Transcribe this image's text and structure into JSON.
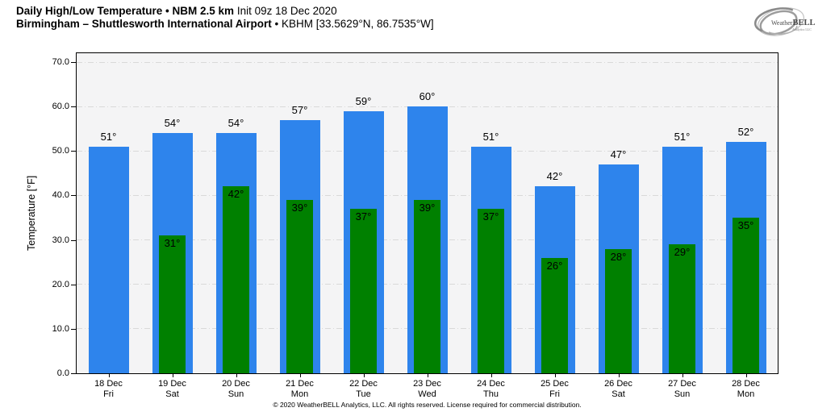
{
  "header": {
    "title_bold": "Daily High/Low Temperature • NBM 2.5 km",
    "title_regular": "Init 09z 18 Dec 2020",
    "subtitle_bold": "Birmingham – Shuttlesworth International Airport",
    "subtitle_regular": "• KBHM [33.5629°N, 86.7535°W]"
  },
  "logo": {
    "weather": "Weather",
    "bell": "BELL",
    "sub": "Analytics LLC"
  },
  "chart_data": {
    "type": "bar",
    "title": "Daily High/Low Temperature • NBM 2.5 km Init 09z 18 Dec 2020",
    "subtitle": "Birmingham – Shuttlesworth International Airport • KBHM [33.5629°N, 86.7535°W]",
    "xlabel": "",
    "ylabel": "Temperature [°F]",
    "ylim": [
      0,
      72
    ],
    "yticks": [
      0,
      10,
      20,
      30,
      40,
      50,
      60,
      70
    ],
    "ytick_labels": [
      "0.0",
      "10.0",
      "20.0",
      "30.0",
      "40.0",
      "50.0",
      "60.0",
      "70.0"
    ],
    "grid": "horizontal dash-dot",
    "legend": "none",
    "plot_bg": "#f4f4f5",
    "gridline_color": "#d9d9d9",
    "categories": [
      {
        "date": "18 Dec",
        "day": "Fri"
      },
      {
        "date": "19 Dec",
        "day": "Sat"
      },
      {
        "date": "20 Dec",
        "day": "Sun"
      },
      {
        "date": "21 Dec",
        "day": "Mon"
      },
      {
        "date": "22 Dec",
        "day": "Tue"
      },
      {
        "date": "23 Dec",
        "day": "Wed"
      },
      {
        "date": "24 Dec",
        "day": "Thu"
      },
      {
        "date": "25 Dec",
        "day": "Fri"
      },
      {
        "date": "26 Dec",
        "day": "Sat"
      },
      {
        "date": "27 Dec",
        "day": "Sun"
      },
      {
        "date": "28 Dec",
        "day": "Mon"
      }
    ],
    "series": [
      {
        "name": "High",
        "color": "#2e84ec",
        "values": [
          51,
          54,
          54,
          57,
          59,
          60,
          51,
          42,
          47,
          51,
          52
        ]
      },
      {
        "name": "Low",
        "color": "#008000",
        "values": [
          null,
          31,
          42,
          39,
          37,
          39,
          37,
          26,
          28,
          29,
          35
        ]
      }
    ],
    "value_suffix": "°"
  },
  "footer": {
    "copyright": "© 2020 WeatherBELL Analytics, LLC. All rights reserved. License required for commercial distribution."
  }
}
